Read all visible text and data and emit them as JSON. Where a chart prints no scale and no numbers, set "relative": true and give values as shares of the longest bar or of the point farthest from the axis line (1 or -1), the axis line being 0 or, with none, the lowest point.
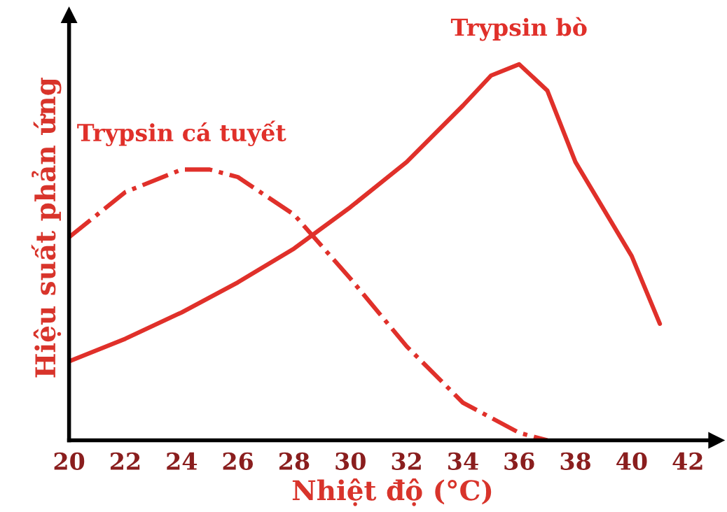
{
  "chart_data": {
    "type": "line",
    "relative": true,
    "xlabel": "Nhiệt độ (°C)",
    "ylabel": "Hiệu suất phản ứng",
    "xlim": [
      20,
      43
    ],
    "xticks": [
      20,
      22,
      24,
      26,
      28,
      30,
      32,
      34,
      36,
      38,
      40,
      42
    ],
    "grid": false,
    "legend": false,
    "marker": "none",
    "series": [
      {
        "name": "Trypsin bò",
        "color": "#e0302a",
        "line_style": "solid",
        "x": [
          20,
          22,
          24,
          26,
          28,
          30,
          32,
          34,
          35,
          36,
          37,
          38,
          40,
          41
        ],
        "values": [
          0.21,
          0.27,
          0.34,
          0.42,
          0.51,
          0.62,
          0.74,
          0.89,
          0.97,
          1.0,
          0.93,
          0.74,
          0.49,
          0.31
        ]
      },
      {
        "name": "Trypsin cá tuyết",
        "color": "#e0302a",
        "line_style": "dashdot",
        "x": [
          20,
          22,
          24,
          25,
          26,
          28,
          30,
          32,
          34,
          36,
          37
        ],
        "values": [
          0.54,
          0.66,
          0.72,
          0.72,
          0.7,
          0.6,
          0.43,
          0.25,
          0.1,
          0.02,
          0.0
        ]
      }
    ]
  }
}
